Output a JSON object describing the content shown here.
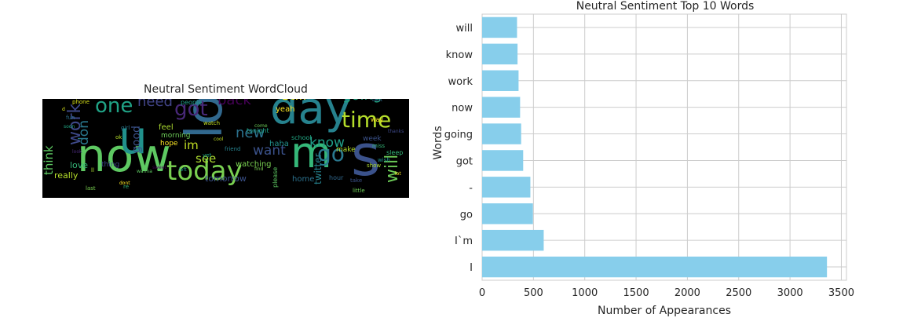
{
  "wordcloud": {
    "title": "Neutral Sentiment WordCloud",
    "background": "#000000",
    "words": [
      {
        "text": "now",
        "color": "#5ec962",
        "size": 58
      },
      {
        "text": "lol",
        "color": "#31688e",
        "size": 64,
        "rotate": true
      },
      {
        "text": "s",
        "color": "#3b528b",
        "size": 72
      },
      {
        "text": "day",
        "color": "#26828e",
        "size": 56
      },
      {
        "text": "m",
        "color": "#35b779",
        "size": 54
      },
      {
        "text": "u",
        "color": "#21918c",
        "size": 58
      },
      {
        "text": "today",
        "color": "#7ad151",
        "size": 34
      },
      {
        "text": "one",
        "color": "#20a386",
        "size": 26
      },
      {
        "text": "time",
        "color": "#b5de2b",
        "size": 28
      },
      {
        "text": "got",
        "color": "#482878",
        "size": 26
      },
      {
        "text": "go",
        "color": "#2a788e",
        "size": 28
      },
      {
        "text": "work",
        "color": "#3e4989",
        "size": 22,
        "rotate": true
      },
      {
        "text": "will",
        "color": "#6ece58",
        "size": 22,
        "rotate": true
      },
      {
        "text": "still",
        "color": "#fde725",
        "size": 18
      },
      {
        "text": "going",
        "color": "#22a884",
        "size": 18
      },
      {
        "text": "back",
        "color": "#440154",
        "size": 18
      },
      {
        "text": "need",
        "color": "#414487",
        "size": 18
      },
      {
        "text": "know",
        "color": "#1f9e89",
        "size": 17
      },
      {
        "text": "want",
        "color": "#3b528b",
        "size": 17
      },
      {
        "text": "new",
        "color": "#2c728e",
        "size": 18
      },
      {
        "text": "see",
        "color": "#addc30",
        "size": 15
      },
      {
        "text": "don",
        "color": "#2a788e",
        "size": 17,
        "rotate": true
      },
      {
        "text": "think",
        "color": "#5ec962",
        "size": 15,
        "rotate": true
      },
      {
        "text": "im",
        "color": "#c2df23",
        "size": 15
      },
      {
        "text": "good",
        "color": "#3b528b",
        "size": 14,
        "rotate": true
      },
      {
        "text": "twitter",
        "color": "#26828e",
        "size": 12,
        "rotate": true
      },
      {
        "text": "tomorrow",
        "color": "#3b528b",
        "size": 11
      },
      {
        "text": "really",
        "color": "#b5de2b",
        "size": 11
      },
      {
        "text": "love",
        "color": "#35b779",
        "size": 11
      },
      {
        "text": "yeah",
        "color": "#fde725",
        "size": 10
      },
      {
        "text": "haha",
        "color": "#21918c",
        "size": 10
      },
      {
        "text": "watching",
        "color": "#7ad151",
        "size": 10
      },
      {
        "text": "home",
        "color": "#2c728e",
        "size": 10
      },
      {
        "text": "make",
        "color": "#b5de2b",
        "size": 9
      },
      {
        "text": "morning",
        "color": "#6ece58",
        "size": 9
      },
      {
        "text": "week",
        "color": "#3b528b",
        "size": 9
      },
      {
        "text": "hope",
        "color": "#fde725",
        "size": 9
      },
      {
        "text": "feel",
        "color": "#addc30",
        "size": 10
      },
      {
        "text": "people",
        "color": "#1f9e89",
        "size": 8
      },
      {
        "text": "school",
        "color": "#22a884",
        "size": 8
      },
      {
        "text": "tonight",
        "color": "#20a386",
        "size": 8
      },
      {
        "text": "please",
        "color": "#5ec962",
        "size": 8
      },
      {
        "text": "sleep",
        "color": "#35b779",
        "size": 8
      },
      {
        "text": "hour",
        "color": "#31688e",
        "size": 8
      },
      {
        "text": "way",
        "color": "#fde725",
        "size": 8
      },
      {
        "text": "thing",
        "color": "#3e4989",
        "size": 9
      },
      {
        "text": "phone",
        "color": "#d8e219",
        "size": 7
      },
      {
        "text": "girl",
        "color": "#2a788e",
        "size": 7
      },
      {
        "text": "last",
        "color": "#7ad151",
        "size": 7
      },
      {
        "text": "wish",
        "color": "#21918c",
        "size": 7
      },
      {
        "text": "little",
        "color": "#6ece58",
        "size": 7
      },
      {
        "text": "watch",
        "color": "#c2df23",
        "size": 7
      },
      {
        "text": "friend",
        "color": "#26828e",
        "size": 7
      },
      {
        "text": "miss",
        "color": "#35b779",
        "size": 7
      },
      {
        "text": "show",
        "color": "#addc30",
        "size": 7
      },
      {
        "text": "take",
        "color": "#3b528b",
        "size": 7
      },
      {
        "text": "dont",
        "color": "#fde725",
        "size": 6
      },
      {
        "text": "ok",
        "color": "#b5de2b",
        "size": 7
      },
      {
        "text": "soon",
        "color": "#22a884",
        "size": 6
      },
      {
        "text": "yet",
        "color": "#20a386",
        "size": 7
      },
      {
        "text": "left",
        "color": "#1f9e89",
        "size": 6
      },
      {
        "text": "wanna",
        "color": "#5ec962",
        "size": 6
      },
      {
        "text": "fun",
        "color": "#2c728e",
        "size": 7
      },
      {
        "text": "sweet",
        "color": "#440154",
        "size": 6
      },
      {
        "text": "look",
        "color": "#482878",
        "size": 6
      },
      {
        "text": "find",
        "color": "#7ad151",
        "size": 6
      },
      {
        "text": "cool",
        "color": "#c2df23",
        "size": 6
      },
      {
        "text": "best",
        "color": "#31688e",
        "size": 6
      },
      {
        "text": "thanks",
        "color": "#3e4989",
        "size": 6
      },
      {
        "text": "lot",
        "color": "#fde725",
        "size": 6
      },
      {
        "text": "come",
        "color": "#6ece58",
        "size": 6
      },
      {
        "text": "ll",
        "color": "#addc30",
        "size": 7
      },
      {
        "text": "re",
        "color": "#35b779",
        "size": 7
      },
      {
        "text": "d",
        "color": "#d8e219",
        "size": 6
      }
    ]
  },
  "chart_data": {
    "type": "bar",
    "orientation": "horizontal",
    "title": "Neutral Sentiment Top 10 Words",
    "xlabel": "Number of Appearances",
    "ylabel": "Words",
    "categories": [
      "will",
      "know",
      "work",
      "now",
      "going",
      "got",
      "-",
      "go",
      "I`m",
      "I"
    ],
    "values": [
      340,
      345,
      355,
      370,
      380,
      400,
      470,
      495,
      600,
      3360
    ],
    "xlim": [
      0,
      3550
    ],
    "xticks": [
      0,
      500,
      1000,
      1500,
      2000,
      2500,
      3000,
      3500
    ],
    "bar_color": "#87ceeb",
    "grid": true,
    "legend": "none"
  }
}
